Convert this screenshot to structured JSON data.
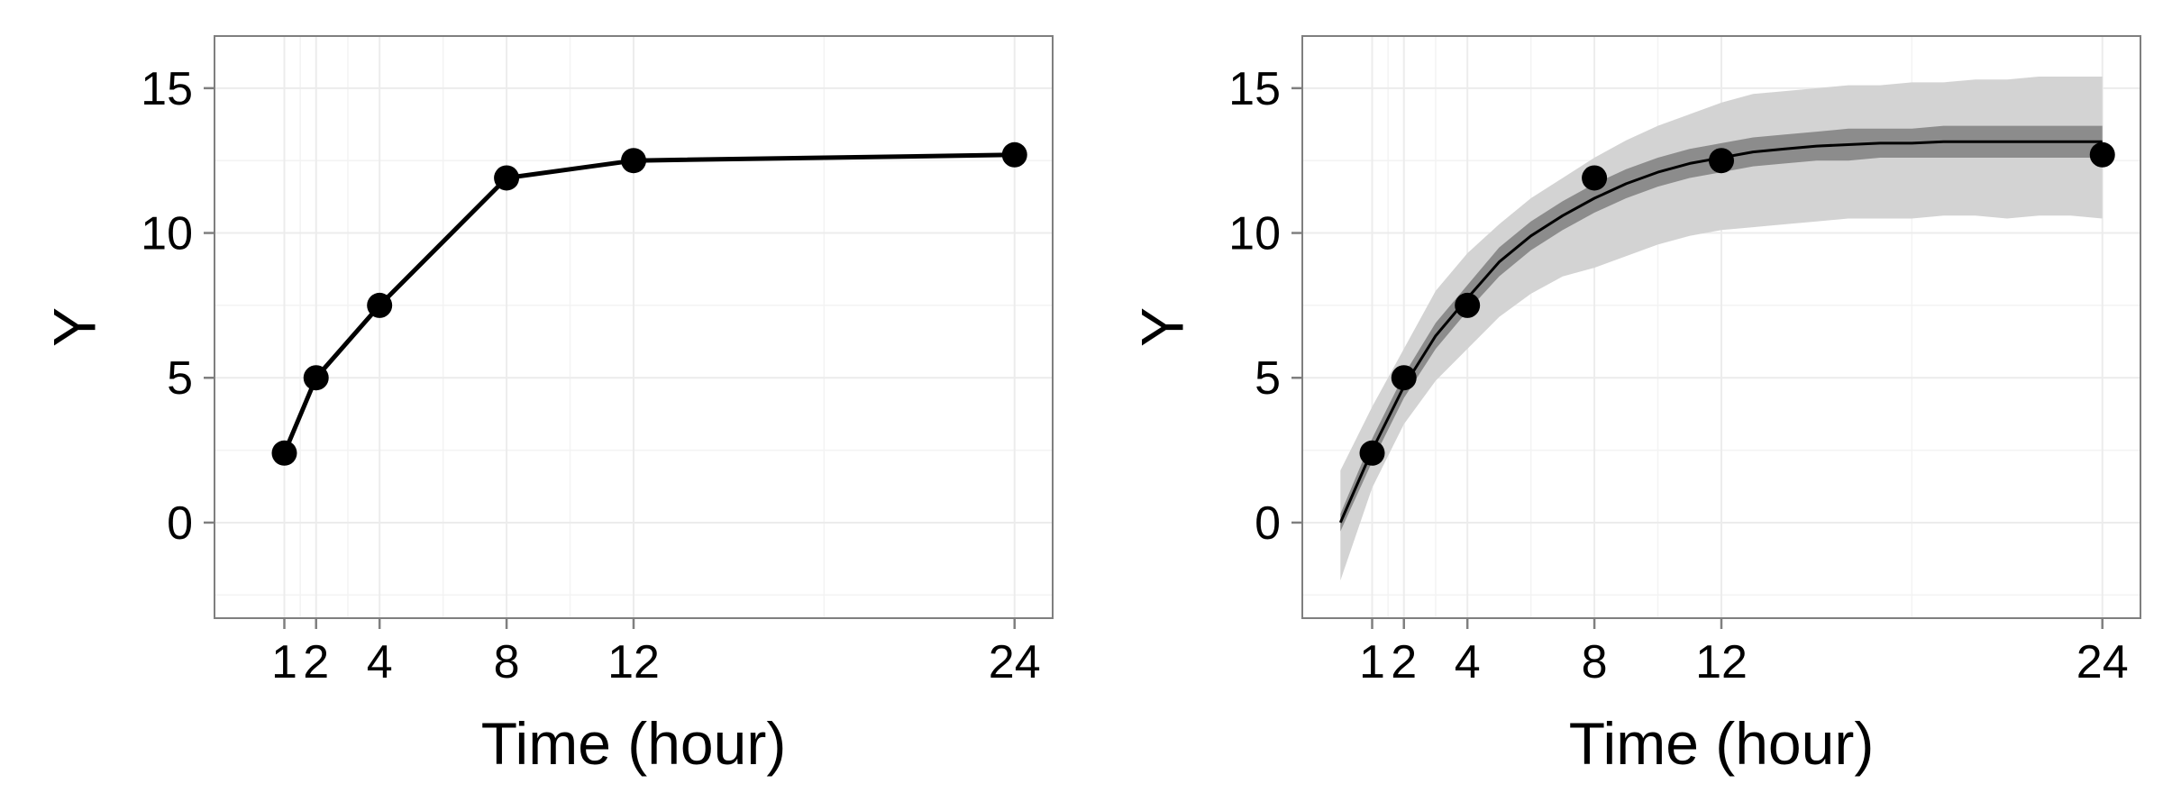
{
  "chart_data": [
    {
      "type": "line",
      "xlabel": "Time (hour)",
      "ylabel": "Y",
      "xlim": [
        -1.2,
        25.2
      ],
      "ylim": [
        -3.3,
        16.8
      ],
      "xticks": [
        1,
        2,
        4,
        8,
        12,
        24
      ],
      "yticks": [
        0,
        5,
        10,
        15
      ],
      "grid": true,
      "series": [
        {
          "x": [
            1,
            2,
            4,
            8,
            12,
            24
          ],
          "y": [
            2.4,
            5.0,
            7.5,
            11.9,
            12.5,
            12.7
          ],
          "line": true,
          "markers": true
        }
      ]
    },
    {
      "type": "line",
      "xlabel": "Time (hour)",
      "ylabel": "Y",
      "xlim": [
        -1.2,
        25.2
      ],
      "ylim": [
        -3.3,
        16.8
      ],
      "xticks": [
        1,
        2,
        4,
        8,
        12,
        24
      ],
      "yticks": [
        0,
        5,
        10,
        15
      ],
      "grid": true,
      "outer_band": {
        "x": [
          0,
          1,
          2,
          3,
          4,
          5,
          6,
          7,
          8,
          9,
          10,
          11,
          12,
          13,
          14,
          15,
          16,
          17,
          18,
          19,
          20,
          21,
          22,
          23,
          24
        ],
        "lower": [
          -2.0,
          1.2,
          3.4,
          4.9,
          6.0,
          7.1,
          7.9,
          8.5,
          8.8,
          9.2,
          9.6,
          9.9,
          10.1,
          10.2,
          10.3,
          10.4,
          10.5,
          10.5,
          10.5,
          10.6,
          10.6,
          10.5,
          10.6,
          10.6,
          10.5
        ],
        "upper": [
          1.8,
          4.0,
          6.0,
          8.0,
          9.3,
          10.3,
          11.2,
          11.9,
          12.6,
          13.2,
          13.7,
          14.1,
          14.5,
          14.8,
          14.9,
          15.0,
          15.1,
          15.1,
          15.2,
          15.2,
          15.3,
          15.3,
          15.4,
          15.4,
          15.4
        ]
      },
      "inner_band": {
        "x": [
          0,
          1,
          2,
          3,
          4,
          5,
          6,
          7,
          8,
          9,
          10,
          11,
          12,
          13,
          14,
          15,
          16,
          17,
          18,
          19,
          20,
          21,
          22,
          23,
          24
        ],
        "lower": [
          -0.3,
          2.1,
          4.3,
          6.0,
          7.3,
          8.5,
          9.4,
          10.1,
          10.7,
          11.2,
          11.6,
          11.9,
          12.1,
          12.3,
          12.4,
          12.5,
          12.5,
          12.6,
          12.6,
          12.6,
          12.6,
          12.6,
          12.6,
          12.6,
          12.6
        ],
        "upper": [
          0.3,
          2.9,
          5.1,
          6.9,
          8.2,
          9.5,
          10.4,
          11.1,
          11.7,
          12.2,
          12.6,
          12.9,
          13.1,
          13.3,
          13.4,
          13.5,
          13.6,
          13.6,
          13.6,
          13.7,
          13.7,
          13.7,
          13.7,
          13.7,
          13.7
        ]
      },
      "series": [
        {
          "x": [
            0,
            1,
            2,
            3,
            4,
            5,
            6,
            7,
            8,
            9,
            10,
            11,
            12,
            13,
            14,
            15,
            16,
            17,
            18,
            19,
            20,
            21,
            22,
            23,
            24
          ],
          "y": [
            0.0,
            2.5,
            4.7,
            6.45,
            7.75,
            9.0,
            9.9,
            10.6,
            11.2,
            11.7,
            12.1,
            12.4,
            12.6,
            12.8,
            12.9,
            13.0,
            13.05,
            13.1,
            13.1,
            13.15,
            13.15,
            13.15,
            13.15,
            13.15,
            13.15
          ],
          "line": true,
          "markers": false
        },
        {
          "x": [
            1,
            2,
            4,
            8,
            12,
            24
          ],
          "y": [
            2.4,
            5.0,
            7.5,
            11.9,
            12.5,
            12.7
          ],
          "line": false,
          "markers": true
        }
      ]
    }
  ]
}
